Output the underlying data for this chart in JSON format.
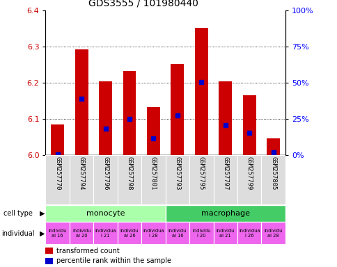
{
  "title": "GDS3555 / 101980440",
  "samples": [
    "GSM257770",
    "GSM257794",
    "GSM257796",
    "GSM257798",
    "GSM257801",
    "GSM257793",
    "GSM257795",
    "GSM257797",
    "GSM257799",
    "GSM257805"
  ],
  "red_values": [
    6.085,
    6.293,
    6.203,
    6.232,
    6.132,
    6.252,
    6.352,
    6.203,
    6.165,
    6.045
  ],
  "blue_values": [
    6.002,
    6.155,
    6.072,
    6.1,
    6.045,
    6.11,
    6.202,
    6.082,
    6.062,
    6.008
  ],
  "ylim_left": [
    6.0,
    6.4
  ],
  "ylim_right": [
    0,
    100
  ],
  "yticks_left": [
    6.0,
    6.1,
    6.2,
    6.3,
    6.4
  ],
  "yticks_right": [
    0,
    25,
    50,
    75,
    100
  ],
  "ytick_labels_right": [
    "0%",
    "25%",
    "50%",
    "75%",
    "100%"
  ],
  "monocyte_color": "#aaffaa",
  "macrophage_color": "#44cc66",
  "indiv_color": "#ee66ee",
  "bar_width": 0.55,
  "red_color": "#cc0000",
  "blue_color": "#0000cc",
  "base": 6.0,
  "indiv_labels": [
    "individu\nal 16",
    "individu\nal 20",
    "individua\nl 21",
    "individu\nal 26",
    "individua\nl 28",
    "individu\nal 16",
    "individu\nl 20",
    "individu\nal 21",
    "individua\nl 26",
    "individu\nal 28"
  ],
  "bg_color": "#dddddd"
}
